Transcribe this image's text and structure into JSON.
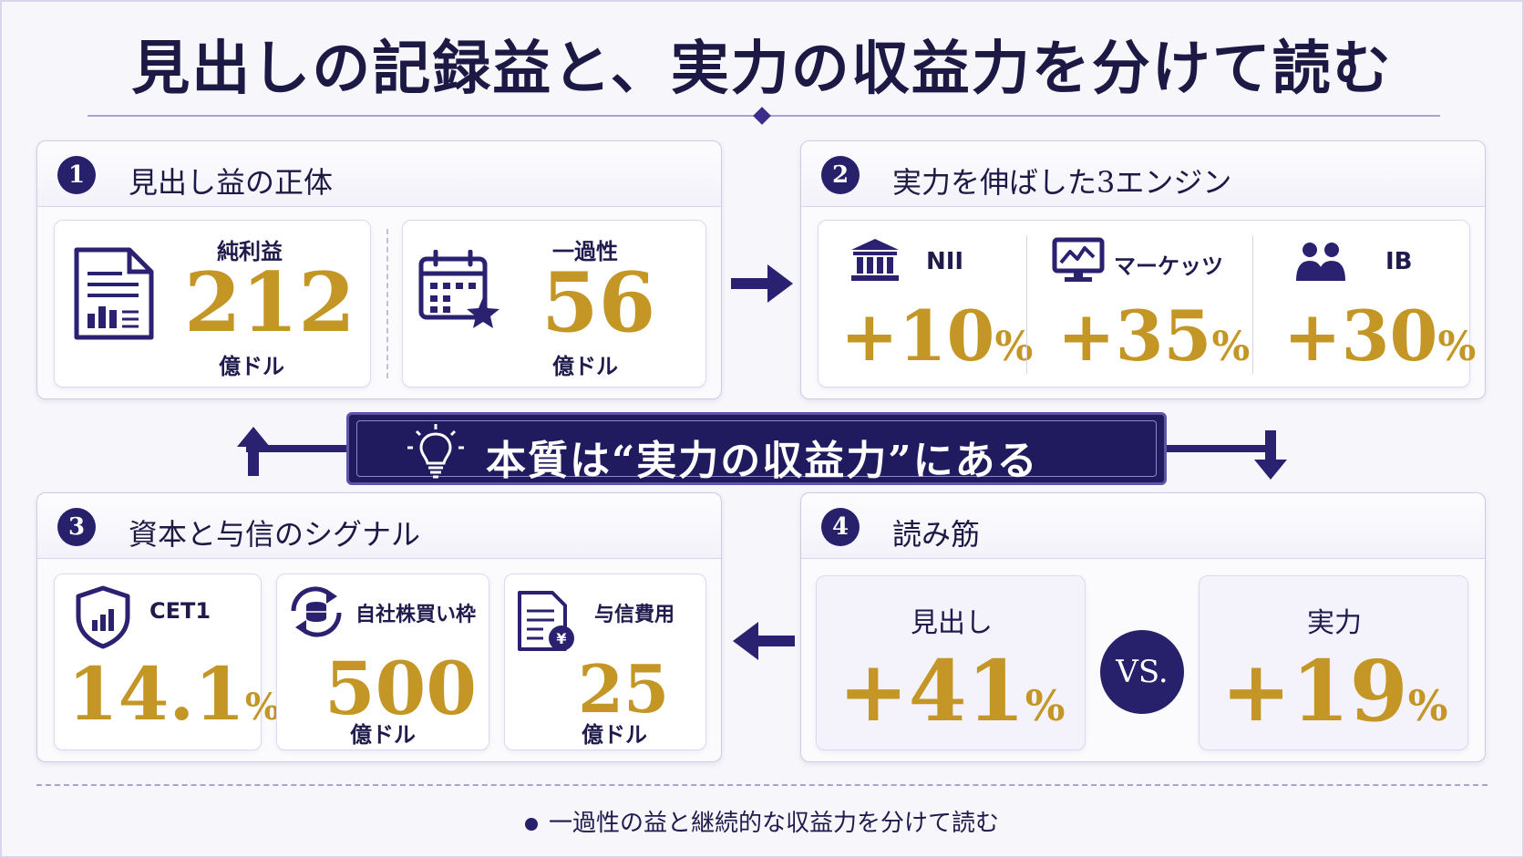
{
  "title": "見出しの記録益と、実力の収益力を分けて読む",
  "colors": {
    "navy": "#27206b",
    "gold": "#c39625",
    "accent": "#3b2e8a"
  },
  "panel1": {
    "num": "1",
    "heading": "見出し益の正体",
    "net": {
      "label": "純利益",
      "value": "212",
      "unit": "億ドル",
      "icon": "document-chart-icon"
    },
    "oneoff": {
      "label": "一過性",
      "value": "56",
      "unit": "億ドル",
      "icon": "calendar-star-icon"
    }
  },
  "panel2": {
    "num": "2",
    "heading": "実力を伸ばした3エンジン",
    "engines": [
      {
        "label": "NII",
        "value": "+10",
        "unit": "%",
        "icon": "bank-icon"
      },
      {
        "label": "マーケッツ",
        "value": "+35",
        "unit": "%",
        "icon": "monitor-chart-icon"
      },
      {
        "label": "IB",
        "value": "+30",
        "unit": "%",
        "icon": "people-icon"
      }
    ]
  },
  "banner": {
    "text": "本質は“実力の収益力”にある",
    "icon": "lightbulb-icon"
  },
  "panel3": {
    "num": "3",
    "heading": "資本と与信のシグナル",
    "cet1": {
      "label": "CET1",
      "value": "14.1",
      "unit": "%",
      "icon": "shield-chart-icon"
    },
    "buyback": {
      "label": "自社株買い枠",
      "value": "500",
      "unit": "億ドル",
      "icon": "coin-cycle-icon"
    },
    "credit": {
      "label": "与信費用",
      "value": "25",
      "unit": "億ドル",
      "icon": "invoice-yen-icon"
    }
  },
  "panel4": {
    "num": "4",
    "heading": "読み筋",
    "headline": {
      "label": "見出し",
      "value": "+41",
      "unit": "%"
    },
    "vs": "VS.",
    "core": {
      "label": "実力",
      "value": "+19",
      "unit": "%"
    }
  },
  "footer": "一過性の益と継続的な収益力を分けて読む"
}
